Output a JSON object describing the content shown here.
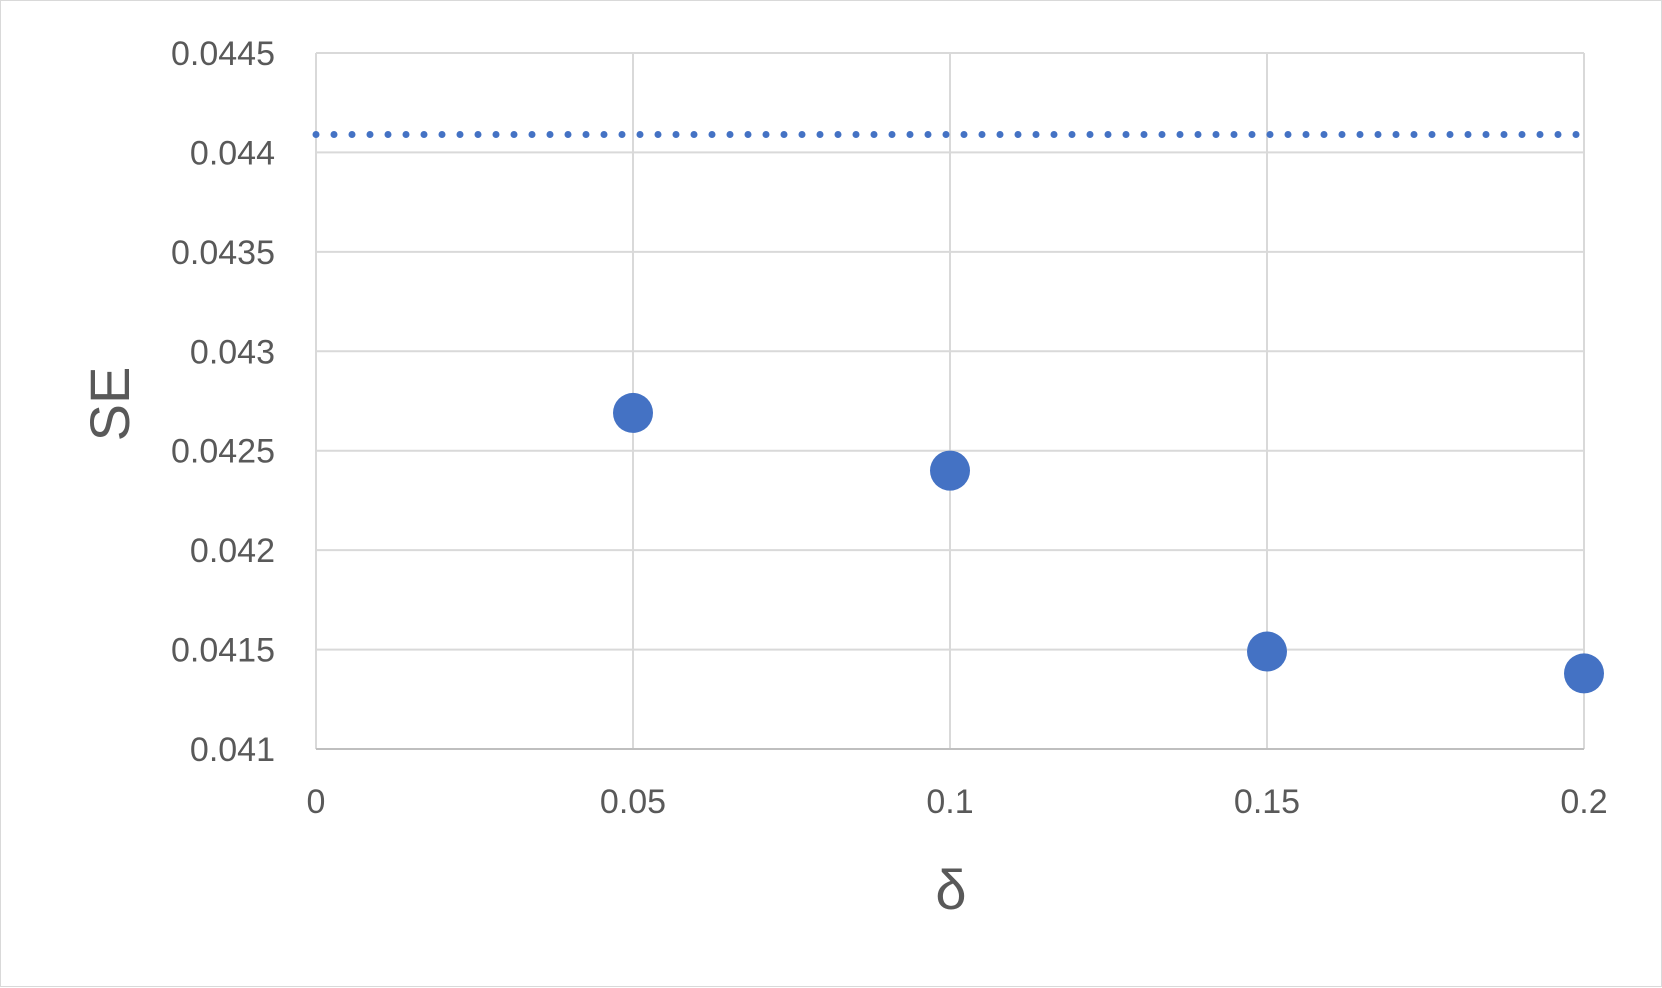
{
  "chart_data": {
    "type": "scatter",
    "title": "",
    "xlabel": "δ",
    "ylabel": "SE",
    "xlim": [
      0,
      0.2
    ],
    "ylim": [
      0.041,
      0.0445
    ],
    "grid": true,
    "legend": "none",
    "x_ticks": [
      "0",
      "0.05",
      "0.1",
      "0.15",
      "0.2"
    ],
    "y_ticks": [
      "0.041",
      "0.0415",
      "0.042",
      "0.0425",
      "0.043",
      "0.0435",
      "0.044",
      "0.0445"
    ],
    "series": [
      {
        "x": [
          0.05,
          0.1,
          0.15,
          0.2
        ],
        "y": [
          0.04269,
          0.0424,
          0.04149,
          0.04138
        ],
        "color": "#4472c4"
      }
    ],
    "reference_line": {
      "style": "dotted",
      "y": 0.04409,
      "color": "#4472c4"
    }
  }
}
